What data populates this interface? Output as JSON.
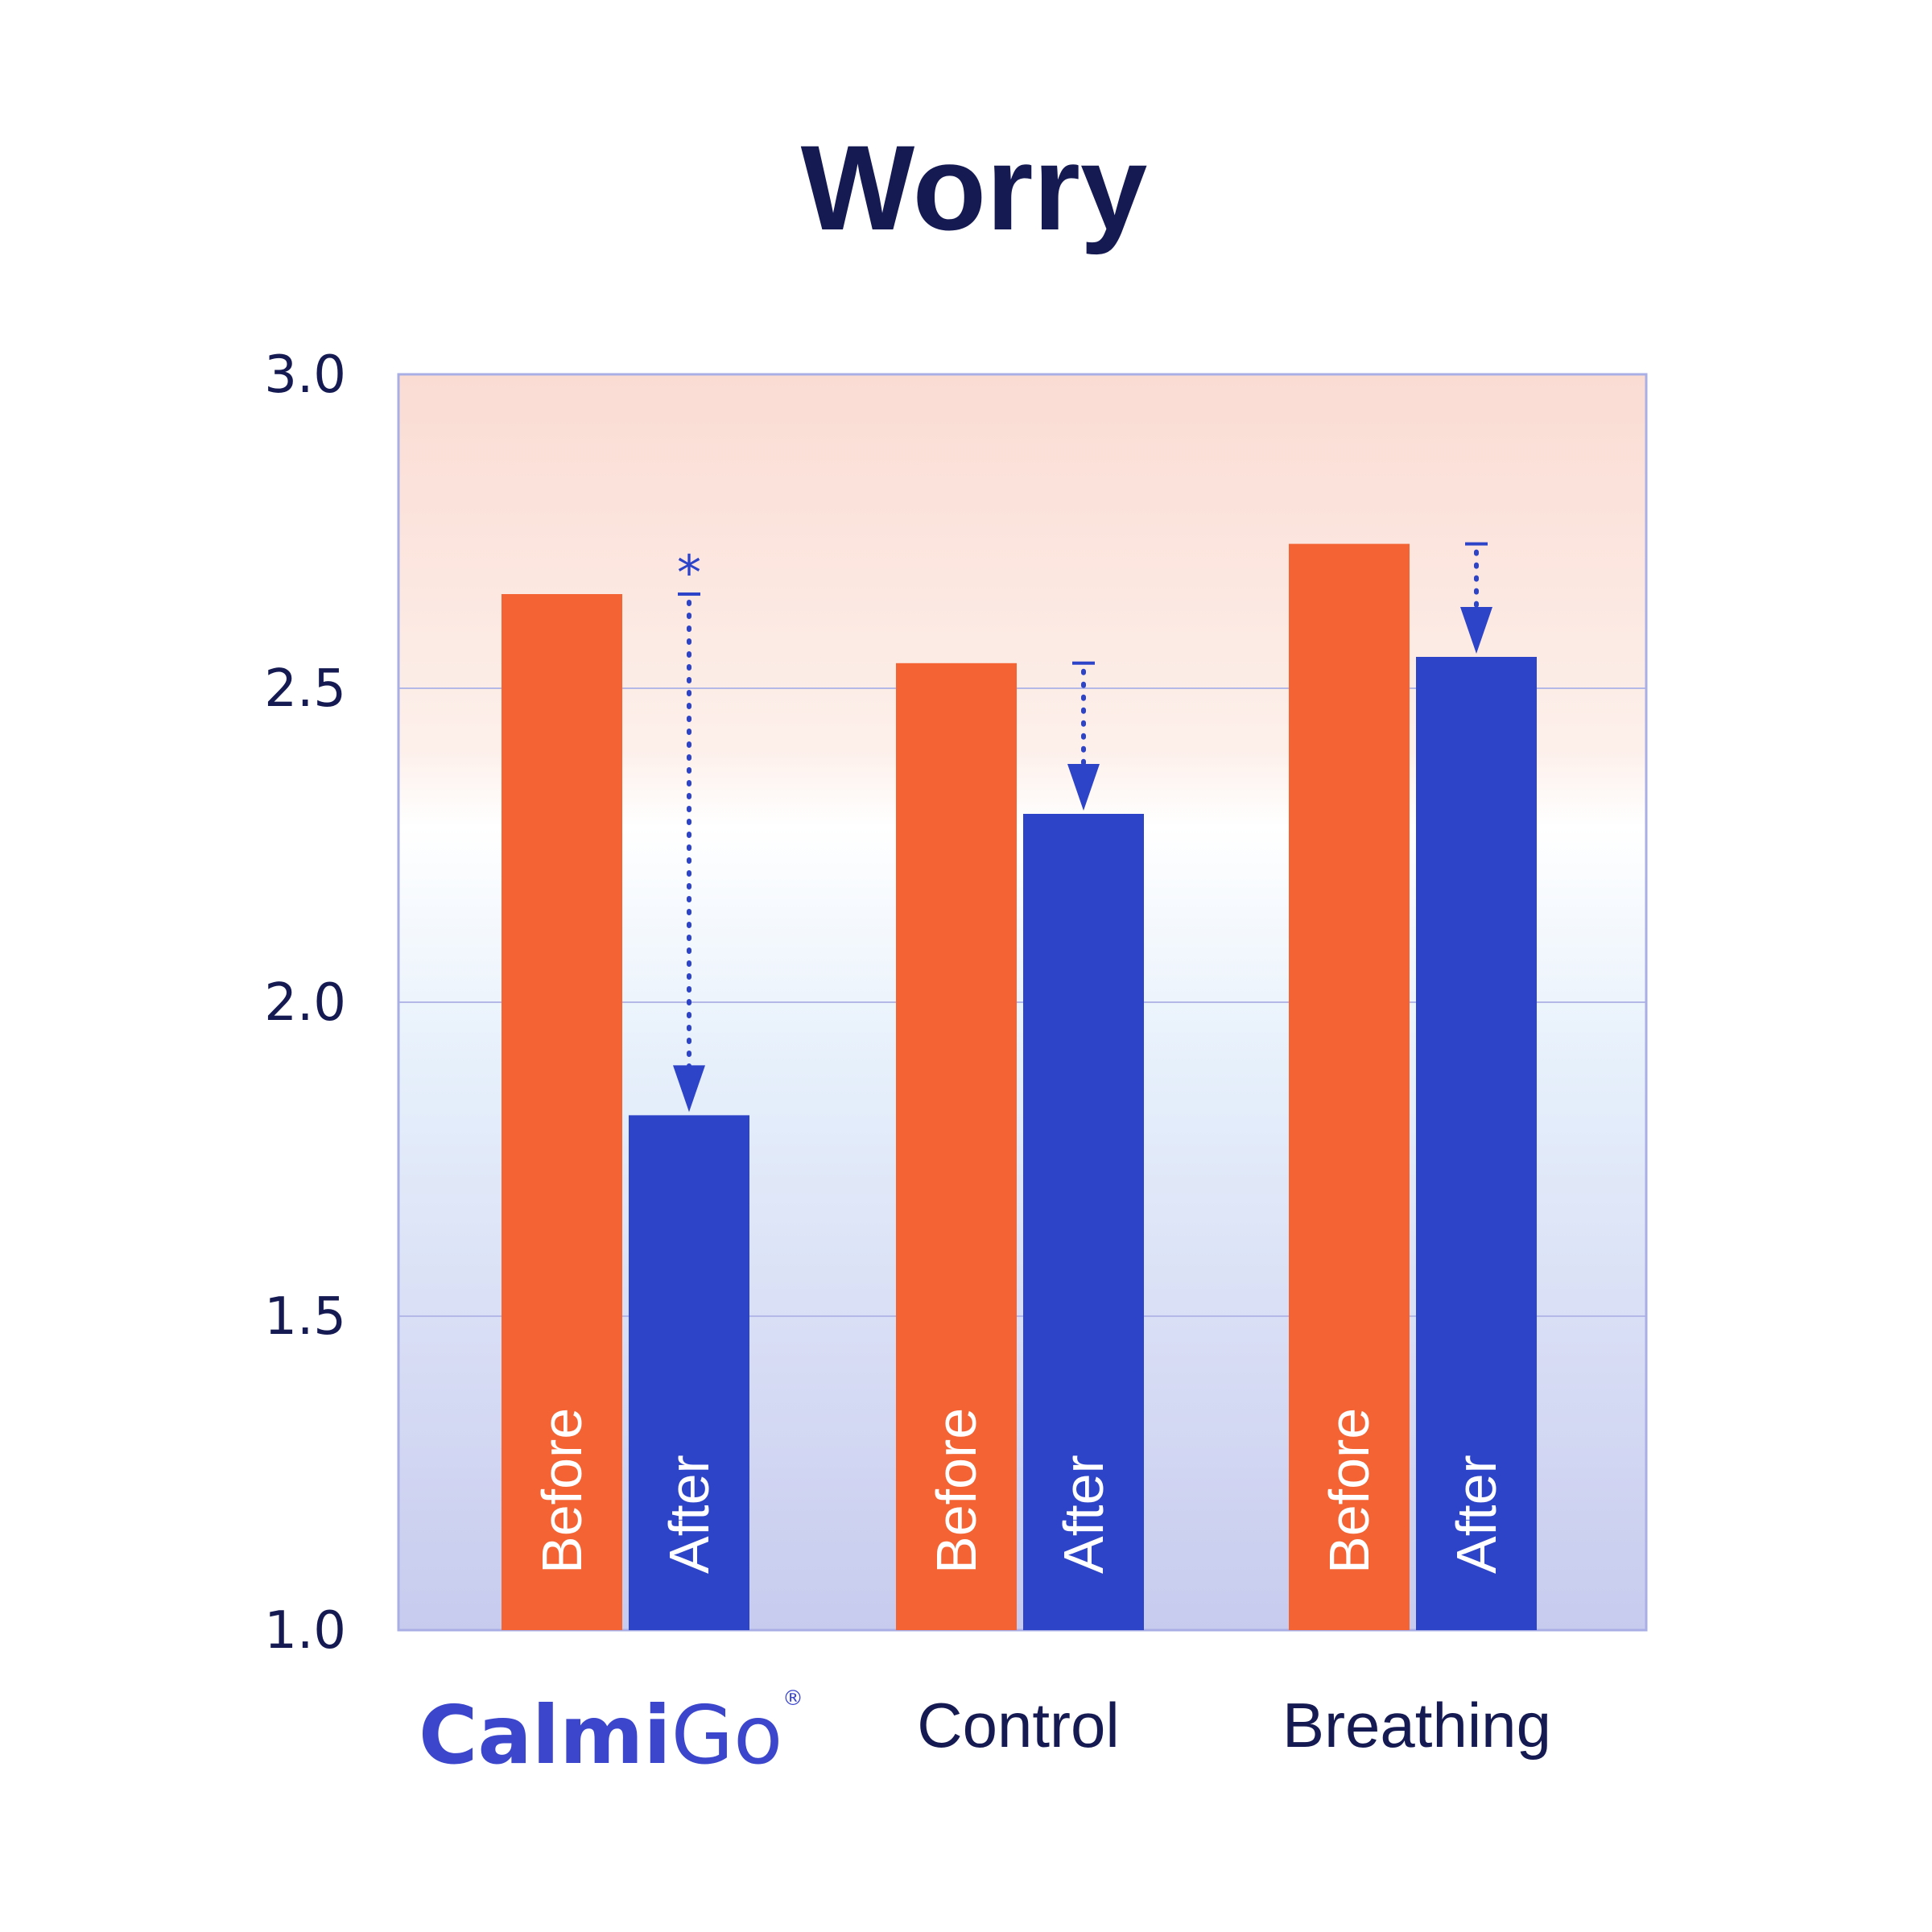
{
  "colors": {
    "before": "#f46333",
    "after": "#2e44c8",
    "text": "#151a52",
    "grid": "#b3b8e6",
    "frame": "#a9afe4",
    "bg_top": "#fadcd3",
    "bg_mid": "#ffffff",
    "bg_bottom": "#c7cbee",
    "brand": "#3b46cc"
  },
  "chart_data": {
    "type": "bar",
    "title": "Worry",
    "xlabel": "",
    "ylabel": "",
    "ylim": [
      1.0,
      3.0
    ],
    "yticks": [
      "1.0",
      "1.5",
      "2.0",
      "2.5",
      "3.0"
    ],
    "grid": true,
    "categories": [
      "CalmiGo",
      "Control",
      "Breathing"
    ],
    "series": [
      {
        "name": "Before",
        "values": [
          2.65,
          2.54,
          2.73
        ]
      },
      {
        "name": "After",
        "values": [
          1.82,
          2.3,
          2.55
        ]
      }
    ],
    "annotations": [
      {
        "category": "CalmiGo",
        "text": "*",
        "type": "change-arrow"
      },
      {
        "category": "Control",
        "text": "",
        "type": "change-arrow"
      },
      {
        "category": "Breathing",
        "text": "",
        "type": "change-arrow"
      }
    ],
    "brand": {
      "main": "Calmi",
      "suffix": "Go",
      "registered": "®"
    }
  }
}
